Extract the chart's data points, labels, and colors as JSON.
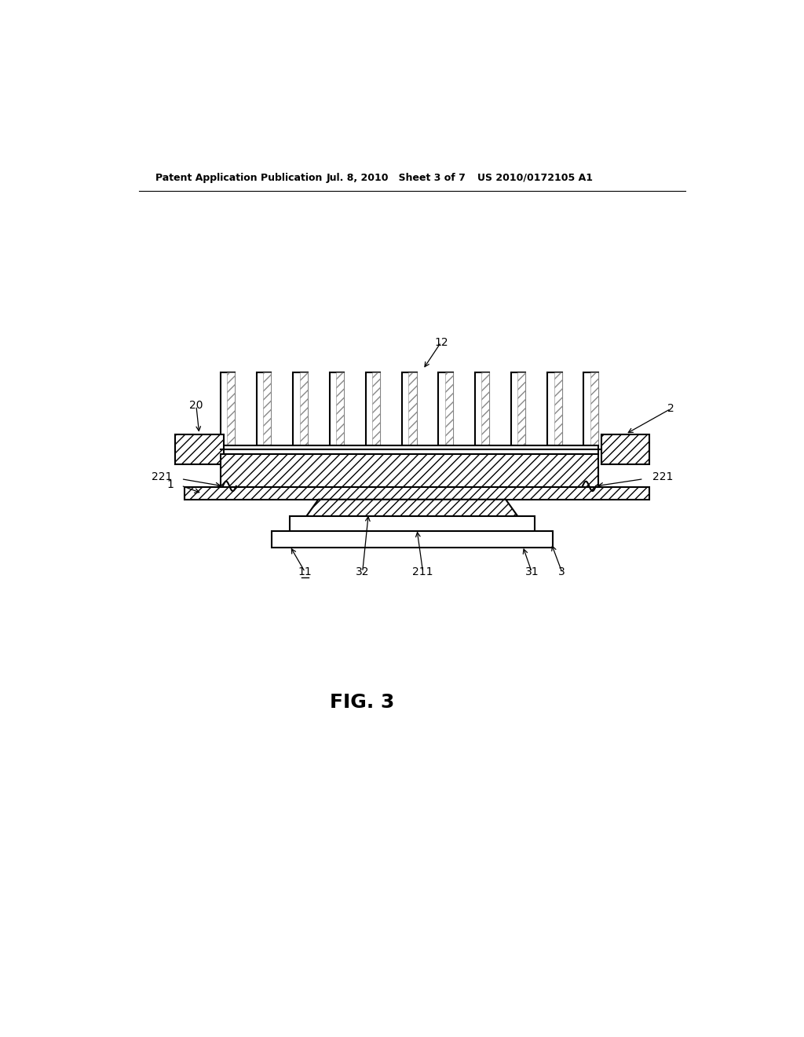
{
  "bg_color": "#ffffff",
  "line_color": "#000000",
  "header_left": "Patent Application Publication",
  "header_mid": "Jul. 8, 2010   Sheet 3 of 7",
  "header_right": "US 2010/0172105 A1",
  "fig_label": "FIG. 3",
  "n_fins": 11,
  "fin_hatch": "///",
  "body_hatch": "///"
}
